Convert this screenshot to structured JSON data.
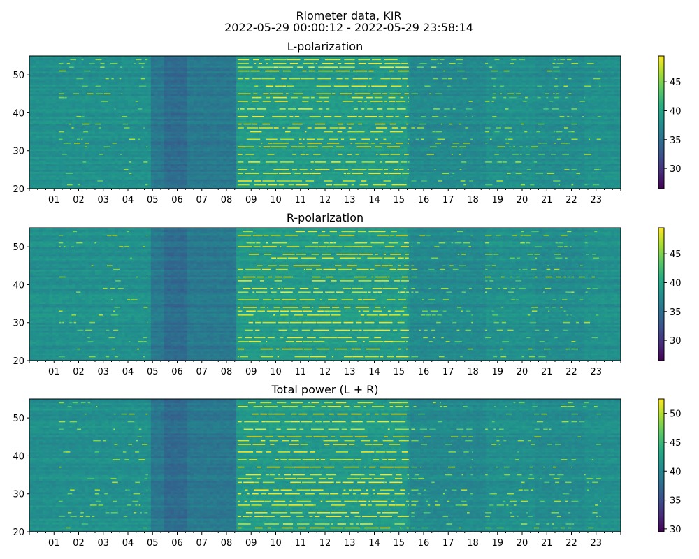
{
  "figure": {
    "title": "Riometer data, KIR",
    "subtitle": "2022-05-29 00:00:12 - 2022-05-29 23:58:14"
  },
  "colormap": {
    "name": "viridis",
    "stops": [
      "#440154",
      "#472c7a",
      "#3b518b",
      "#2c718e",
      "#21908d",
      "#27ad81",
      "#5cc863",
      "#aadc32",
      "#fde725"
    ]
  },
  "chart_data": [
    {
      "type": "heatmap",
      "title": "L-polarization",
      "xlabel": "",
      "ylabel": "",
      "x_range_hours": [
        0,
        24
      ],
      "x_tick_labels": [
        "01",
        "02",
        "03",
        "04",
        "05",
        "06",
        "07",
        "08",
        "09",
        "10",
        "11",
        "12",
        "13",
        "14",
        "15",
        "16",
        "17",
        "18",
        "19",
        "20",
        "21",
        "22",
        "23"
      ],
      "y_range": [
        20,
        55
      ],
      "y_ticks": [
        20,
        30,
        40,
        50
      ],
      "colorbar": {
        "range": [
          26.5,
          49.5
        ],
        "ticks": [
          30,
          35,
          40,
          45
        ]
      },
      "baseline_value": 38,
      "dark_band_hours": [
        [
          4.9,
          5.5
        ],
        [
          5.5,
          6.4
        ],
        [
          6.4,
          8.4
        ]
      ],
      "active_period_hours": [
        8.45,
        15.4
      ],
      "bright_lines_y": [
        21,
        22,
        24,
        25,
        27,
        29,
        31,
        32,
        33,
        35,
        36,
        37,
        39,
        41,
        43,
        44,
        45,
        47,
        49,
        51,
        52,
        53,
        54
      ]
    },
    {
      "type": "heatmap",
      "title": "R-polarization",
      "xlabel": "",
      "ylabel": "",
      "x_range_hours": [
        0,
        24
      ],
      "x_tick_labels": [
        "01",
        "02",
        "03",
        "04",
        "05",
        "06",
        "07",
        "08",
        "09",
        "10",
        "11",
        "12",
        "13",
        "14",
        "15",
        "16",
        "17",
        "18",
        "19",
        "20",
        "21",
        "22",
        "23"
      ],
      "y_range": [
        20,
        55
      ],
      "y_ticks": [
        20,
        30,
        40,
        50
      ],
      "colorbar": {
        "range": [
          26.5,
          49.5
        ],
        "ticks": [
          30,
          35,
          40,
          45
        ]
      },
      "baseline_value": 38,
      "dark_band_hours": [
        [
          4.9,
          5.5
        ],
        [
          5.5,
          6.4
        ],
        [
          6.4,
          8.4
        ]
      ],
      "active_period_hours": [
        8.45,
        15.4
      ],
      "bright_lines_y": [
        21,
        23,
        25,
        26,
        28,
        30,
        32,
        33,
        34,
        36,
        38,
        39,
        41,
        42,
        44,
        45,
        47,
        48,
        50,
        51,
        53,
        54
      ]
    },
    {
      "type": "heatmap",
      "title": "Total power (L + R)",
      "xlabel": "",
      "ylabel": "",
      "x_range_hours": [
        0,
        24
      ],
      "x_tick_labels": [
        "01",
        "02",
        "03",
        "04",
        "05",
        "06",
        "07",
        "08",
        "09",
        "10",
        "11",
        "12",
        "13",
        "14",
        "15",
        "16",
        "17",
        "18",
        "19",
        "20",
        "21",
        "22",
        "23"
      ],
      "y_range": [
        20,
        55
      ],
      "y_ticks": [
        20,
        30,
        40,
        50
      ],
      "colorbar": {
        "range": [
          29.5,
          52.5
        ],
        "ticks": [
          30,
          35,
          40,
          45,
          50
        ]
      },
      "baseline_value": 41,
      "dark_band_hours": [
        [
          4.9,
          5.5
        ],
        [
          5.5,
          6.4
        ],
        [
          6.4,
          8.4
        ]
      ],
      "active_period_hours": [
        8.45,
        15.4
      ],
      "bright_lines_y": [
        21,
        22,
        24,
        25,
        27,
        28,
        30,
        31,
        33,
        34,
        35,
        37,
        39,
        41,
        43,
        44,
        45,
        47,
        49,
        51,
        53,
        54
      ]
    }
  ]
}
